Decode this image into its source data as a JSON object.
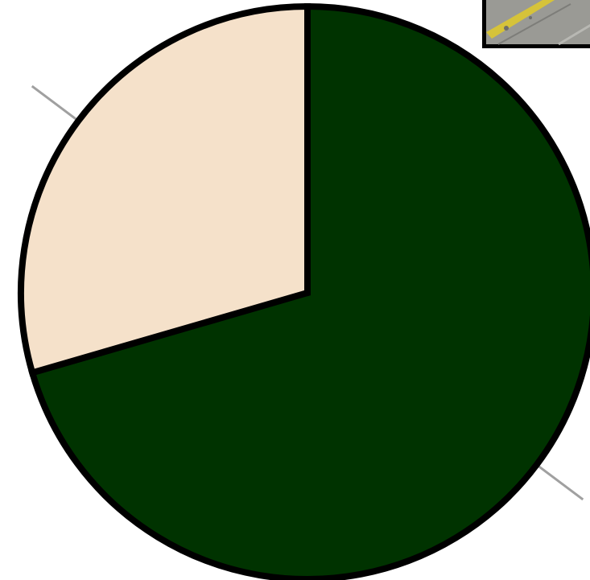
{
  "chart_data": {
    "type": "pie",
    "start_angle_deg": 0,
    "direction": "clockwise",
    "slices": [
      {
        "value": 70.5,
        "color": "#003300"
      },
      {
        "value": 29.5,
        "color": "#f5e1ca"
      }
    ],
    "outline_color": "#000000",
    "leader_line_color": "#a0a0a0",
    "title": "",
    "legend": "none"
  },
  "inset_image": {
    "icon": "road-photo-icon",
    "colors": {
      "pavement": "#9a9a95",
      "stripe": "#d6c33a",
      "frame": "#000000"
    }
  }
}
